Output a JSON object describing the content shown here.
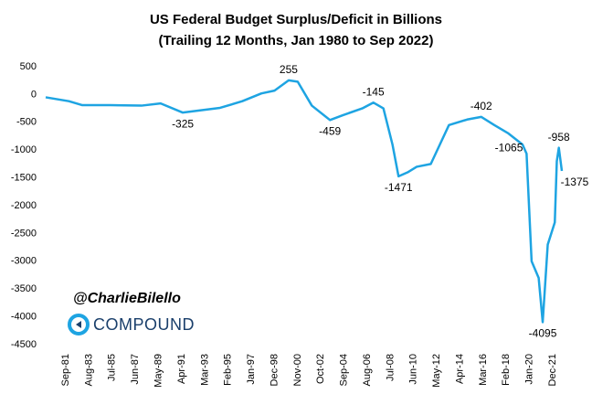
{
  "chart_data": {
    "type": "line",
    "title": "US Federal Budget Surplus/Deficit in Billions",
    "subtitle": "(Trailing  12 Months, Jan 1980 to Sep 2022)",
    "x": [
      "Jan-80",
      "Dec-81",
      "Jan-83",
      "May-85",
      "Dec-87",
      "Jul-89",
      "May-91",
      "Jun-94",
      "Apr-96",
      "Nov-97",
      "Dec-98",
      "Feb-00",
      "Nov-00",
      "Jan-02",
      "Jul-03",
      "Aug-04",
      "Mar-06",
      "Feb-07",
      "Dec-07",
      "Sep-08",
      "Mar-09",
      "Dec-09",
      "Sep-10",
      "Nov-11",
      "Aug-12",
      "May-13",
      "Nov-14",
      "Jan-16",
      "Feb-17",
      "Apr-18",
      "Jun-19",
      "Oct-19",
      "Mar-20",
      "Oct-20",
      "Feb-21",
      "Jul-21",
      "Feb-22",
      "Apr-22",
      "Jun-22",
      "Sep-22"
    ],
    "series": [
      {
        "name": "Surplus/Deficit",
        "color": "#1ea4e2",
        "values": [
          -50,
          -120,
          -190,
          -190,
          -200,
          -160,
          -325,
          -240,
          -120,
          20,
          70,
          255,
          230,
          -200,
          -459,
          -370,
          -250,
          -145,
          -250,
          -900,
          -1471,
          -1400,
          -1300,
          -1250,
          -900,
          -550,
          -450,
          -402,
          -550,
          -700,
          -900,
          -1065,
          -3000,
          -3300,
          -4095,
          -2700,
          -2300,
          -1200,
          -958,
          -1375
        ]
      }
    ],
    "xlim": [
      "Jan-80",
      "Sep-22"
    ],
    "xticks": [
      "Sep-81",
      "Aug-83",
      "Jul-85",
      "Jun-87",
      "May-89",
      "Apr-91",
      "Mar-93",
      "Feb-95",
      "Jan-97",
      "Dec-98",
      "Nov-00",
      "Oct-02",
      "Sep-04",
      "Aug-06",
      "Jul-08",
      "Jun-10",
      "May-12",
      "Apr-14",
      "Mar-16",
      "Feb-18",
      "Jan-20",
      "Dec-21"
    ],
    "ylim": [
      -4500,
      500
    ],
    "yticks": [
      500,
      0,
      -500,
      -1000,
      -1500,
      -2000,
      -2500,
      -3000,
      -3500,
      -4000,
      -4500
    ],
    "grid": false,
    "annotations": [
      {
        "x": "May-91",
        "text": "-325",
        "pos": "below"
      },
      {
        "x": "Feb-00",
        "text": "255",
        "pos": "above"
      },
      {
        "x": "Jul-03",
        "text": "-459",
        "pos": "below"
      },
      {
        "x": "Feb-07",
        "text": "-145",
        "pos": "above"
      },
      {
        "x": "Mar-09",
        "text": "-1471",
        "pos": "below"
      },
      {
        "x": "Jan-16",
        "text": "-402",
        "pos": "above"
      },
      {
        "x": "Oct-19",
        "text": "-1065",
        "pos": "left"
      },
      {
        "x": "Feb-21",
        "text": "-4095",
        "pos": "below"
      },
      {
        "x": "Jun-22",
        "text": "-958",
        "pos": "above"
      },
      {
        "x": "Sep-22",
        "text": "-1375",
        "pos": "below"
      }
    ],
    "watermark": {
      "handle": "@CharlieBilello",
      "brand": "COMPOUND"
    }
  }
}
